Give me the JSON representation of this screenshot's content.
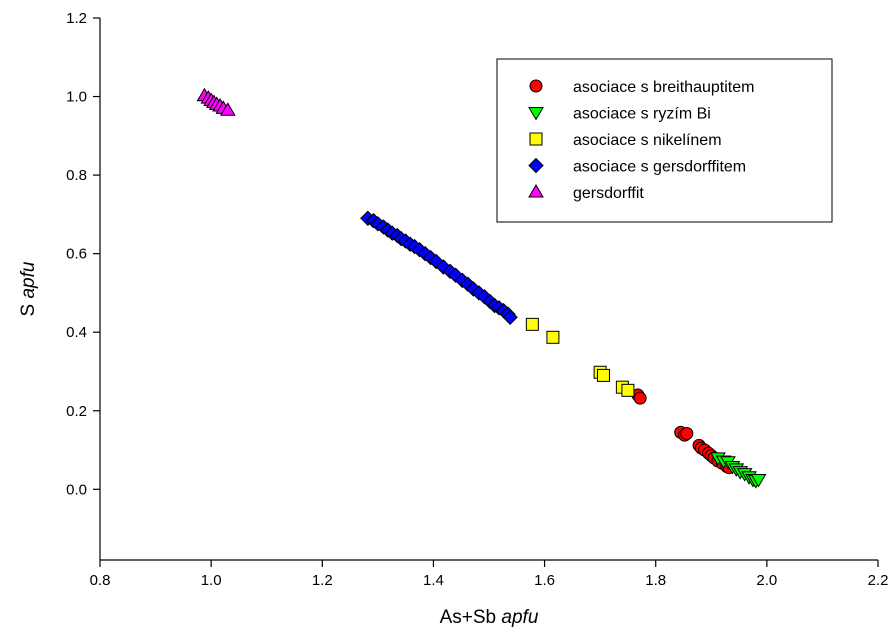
{
  "chart_data": {
    "type": "scatter",
    "xlabel": {
      "main": "As+Sb ",
      "unit": "apfu",
      "suffix": ""
    },
    "ylabel": {
      "main": "S ",
      "unit": "apfu",
      "suffix": ""
    },
    "xlim": [
      0.8,
      2.2
    ],
    "ylim": [
      -0.18,
      1.2
    ],
    "xticks": [
      "0.8",
      "1.0",
      "1.2",
      "1.4",
      "1.6",
      "1.8",
      "2.0",
      "2.2"
    ],
    "yticks": [
      "0.0",
      "0.2",
      "0.4",
      "0.6",
      "0.8",
      "1.0",
      "1.2"
    ],
    "grid": false,
    "legend_position": "top-right",
    "series": [
      {
        "name": "asociace s breithauptitem",
        "marker": "circle",
        "color": "#ff0000",
        "points": [
          [
            1.768,
            0.24
          ],
          [
            1.772,
            0.232
          ],
          [
            1.845,
            0.145
          ],
          [
            1.852,
            0.138
          ],
          [
            1.856,
            0.142
          ],
          [
            1.878,
            0.112
          ],
          [
            1.882,
            0.105
          ],
          [
            1.888,
            0.1
          ],
          [
            1.895,
            0.092
          ],
          [
            1.9,
            0.086
          ],
          [
            1.905,
            0.08
          ],
          [
            1.912,
            0.072
          ],
          [
            1.92,
            0.066
          ],
          [
            1.928,
            0.058
          ],
          [
            1.932,
            0.055
          ]
        ]
      },
      {
        "name": "asociace s ryzím Bi",
        "marker": "triangle-down",
        "color": "#00ff00",
        "points": [
          [
            1.912,
            0.08
          ],
          [
            1.922,
            0.072
          ],
          [
            1.93,
            0.07
          ],
          [
            1.938,
            0.058
          ],
          [
            1.945,
            0.052
          ],
          [
            1.952,
            0.045
          ],
          [
            1.96,
            0.04
          ],
          [
            1.968,
            0.032
          ],
          [
            1.975,
            0.025
          ],
          [
            1.98,
            0.022
          ],
          [
            1.985,
            0.025
          ]
        ]
      },
      {
        "name": "asociace s nikelínem",
        "marker": "square",
        "color": "#ffff00",
        "points": [
          [
            1.578,
            0.42
          ],
          [
            1.615,
            0.387
          ],
          [
            1.7,
            0.298
          ],
          [
            1.706,
            0.29
          ],
          [
            1.74,
            0.26
          ],
          [
            1.75,
            0.252
          ]
        ]
      },
      {
        "name": "asociace s gersdorffitem",
        "marker": "diamond",
        "color": "#0000ff",
        "points": [
          [
            1.282,
            0.69
          ],
          [
            1.292,
            0.684
          ],
          [
            1.3,
            0.676
          ],
          [
            1.31,
            0.668
          ],
          [
            1.318,
            0.66
          ],
          [
            1.326,
            0.652
          ],
          [
            1.335,
            0.646
          ],
          [
            1.342,
            0.638
          ],
          [
            1.35,
            0.632
          ],
          [
            1.358,
            0.624
          ],
          [
            1.366,
            0.618
          ],
          [
            1.375,
            0.61
          ],
          [
            1.385,
            0.6
          ],
          [
            1.395,
            0.59
          ],
          [
            1.405,
            0.58
          ],
          [
            1.418,
            0.566
          ],
          [
            1.43,
            0.555
          ],
          [
            1.44,
            0.545
          ],
          [
            1.452,
            0.532
          ],
          [
            1.462,
            0.522
          ],
          [
            1.472,
            0.51
          ],
          [
            1.482,
            0.5
          ],
          [
            1.492,
            0.49
          ],
          [
            1.502,
            0.478
          ],
          [
            1.51,
            0.468
          ],
          [
            1.518,
            0.462
          ],
          [
            1.526,
            0.455
          ],
          [
            1.534,
            0.446
          ],
          [
            1.538,
            0.438
          ]
        ]
      },
      {
        "name": "gersdorffit",
        "marker": "triangle-up",
        "color": "#ff00ff",
        "points": [
          [
            0.988,
            1.002
          ],
          [
            0.995,
            0.996
          ],
          [
            1.0,
            0.99
          ],
          [
            1.005,
            0.985
          ],
          [
            1.01,
            0.98
          ],
          [
            1.016,
            0.976
          ],
          [
            1.022,
            0.97
          ],
          [
            1.03,
            0.965
          ]
        ]
      }
    ]
  }
}
